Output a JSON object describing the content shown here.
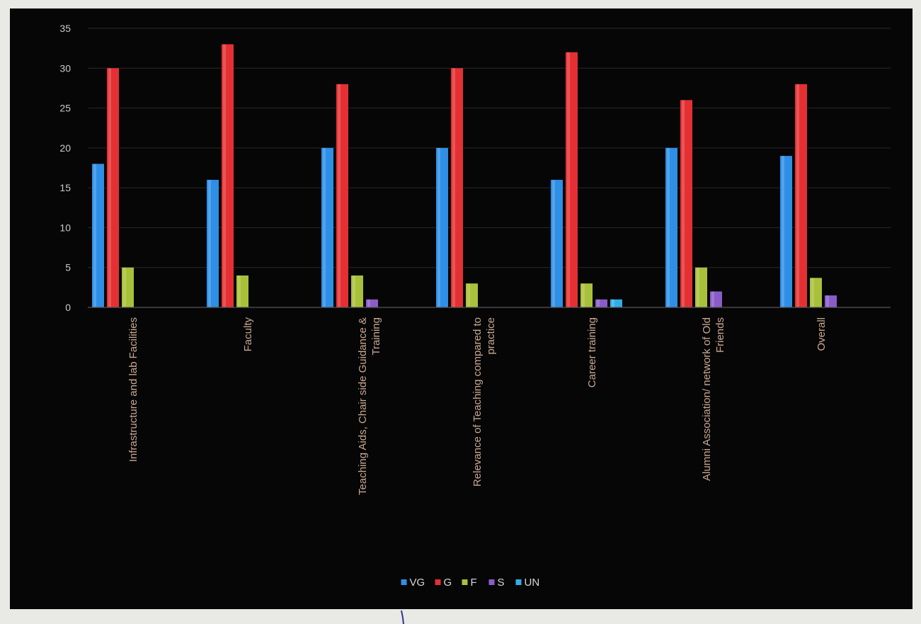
{
  "chart_data": {
    "type": "bar",
    "title": "",
    "xlabel": "",
    "ylabel": "",
    "ylim": [
      0,
      35
    ],
    "yticks": [
      0,
      5,
      10,
      15,
      20,
      25,
      30,
      35
    ],
    "grid": true,
    "legend_position": "bottom",
    "categories": [
      [
        "Infrastructure and lab Facilities"
      ],
      [
        "Faculty"
      ],
      [
        "Teaching Aids, Chair side Guidance  &",
        "Training"
      ],
      [
        "Relevance of Teaching compared to",
        "practice"
      ],
      [
        "Career training"
      ],
      [
        "Alumni Association/ network of Old",
        "Friends"
      ],
      [
        "Overall"
      ]
    ],
    "series": [
      {
        "name": "VG",
        "color": "#2e8fe6",
        "values": [
          18,
          16,
          20,
          20,
          16,
          20,
          19
        ]
      },
      {
        "name": "G",
        "color": "#e53033",
        "values": [
          30,
          33,
          28,
          30,
          32,
          26,
          28
        ]
      },
      {
        "name": "F",
        "color": "#a9c13a",
        "values": [
          5,
          4,
          4,
          3,
          3,
          5,
          3.7
        ]
      },
      {
        "name": "S",
        "color": "#8a5cc9",
        "values": [
          0,
          0,
          1,
          0,
          1,
          2,
          1.5
        ]
      },
      {
        "name": "UN",
        "color": "#32aee6",
        "values": [
          0,
          0,
          0,
          0,
          1,
          0,
          0
        ]
      }
    ]
  }
}
